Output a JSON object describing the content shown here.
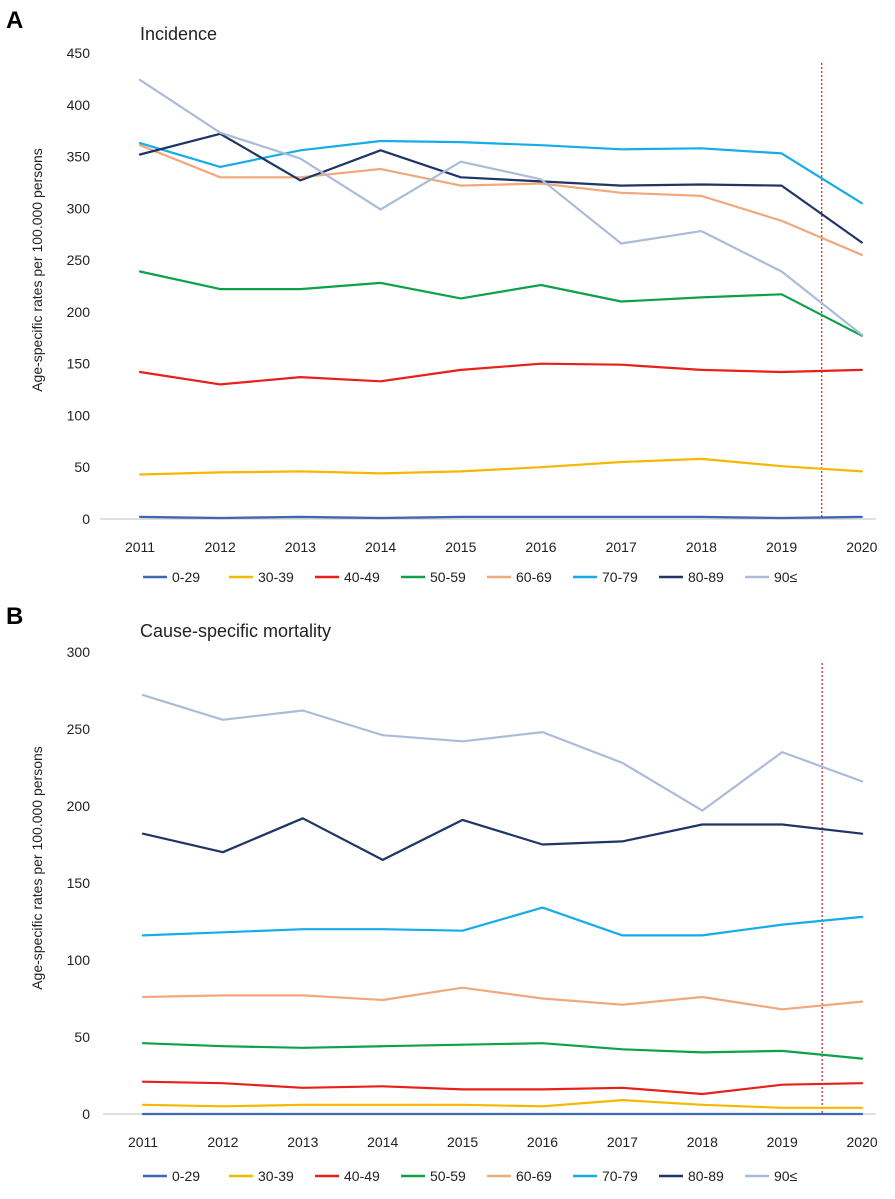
{
  "chart_data": [
    {
      "type": "line",
      "panel": "A",
      "title": "Incidence",
      "xlabel": "",
      "ylabel": "Age-specific rates per 100.000 persons",
      "x": [
        "2011",
        "2012",
        "2013",
        "2014",
        "2015",
        "2016",
        "2017",
        "2018",
        "2019",
        "2020"
      ],
      "ylim": [
        0,
        450
      ],
      "yticks": [
        0,
        50,
        100,
        150,
        200,
        250,
        300,
        350,
        400,
        450
      ],
      "grid": false,
      "legend": "bottom",
      "vline_between": [
        "2019",
        "2020"
      ],
      "series": [
        {
          "name": "0-29",
          "color": "#3f66b1",
          "values": [
            2,
            1,
            2,
            1,
            2,
            2,
            2,
            2,
            1,
            2
          ]
        },
        {
          "name": "30-39",
          "color": "#f5b800",
          "values": [
            43,
            45,
            46,
            44,
            46,
            50,
            55,
            58,
            51,
            46
          ]
        },
        {
          "name": "40-49",
          "color": "#e8201a",
          "values": [
            142,
            130,
            137,
            133,
            144,
            150,
            149,
            144,
            142,
            144
          ]
        },
        {
          "name": "50-59",
          "color": "#0fa04a",
          "values": [
            239,
            222,
            222,
            228,
            213,
            226,
            210,
            214,
            217,
            177
          ]
        },
        {
          "name": "60-69",
          "color": "#f0a87c",
          "values": [
            361,
            330,
            330,
            338,
            322,
            324,
            315,
            312,
            288,
            255
          ]
        },
        {
          "name": "70-79",
          "color": "#16ace8",
          "values": [
            363,
            340,
            356,
            365,
            364,
            361,
            357,
            358,
            353,
            305
          ]
        },
        {
          "name": "80-89",
          "color": "#1f3566",
          "values": [
            352,
            372,
            327,
            356,
            330,
            326,
            322,
            323,
            322,
            267
          ]
        },
        {
          "name": "90≤",
          "color": "#adbbdb",
          "values": [
            424,
            373,
            348,
            299,
            345,
            328,
            266,
            278,
            239,
            178
          ]
        }
      ]
    },
    {
      "type": "line",
      "panel": "B",
      "title": "Cause-specific mortality",
      "xlabel": "",
      "ylabel": "Age-specific rates per 100.000 persons",
      "x": [
        "2011",
        "2012",
        "2013",
        "2014",
        "2015",
        "2016",
        "2017",
        "2018",
        "2019",
        "2020"
      ],
      "ylim": [
        0,
        300
      ],
      "yticks": [
        0,
        50,
        100,
        150,
        200,
        250,
        300
      ],
      "grid": false,
      "legend": "bottom",
      "vline_between": [
        "2019",
        "2020"
      ],
      "series": [
        {
          "name": "0-29",
          "color": "#3f66b1",
          "values": [
            0,
            0,
            0,
            0,
            0,
            0,
            0,
            0,
            0,
            0
          ]
        },
        {
          "name": "30-39",
          "color": "#f5b800",
          "values": [
            6,
            5,
            6,
            6,
            6,
            5,
            9,
            6,
            4,
            4
          ]
        },
        {
          "name": "40-49",
          "color": "#e8201a",
          "values": [
            21,
            20,
            17,
            18,
            16,
            16,
            17,
            13,
            19,
            20
          ]
        },
        {
          "name": "50-59",
          "color": "#0fa04a",
          "values": [
            46,
            44,
            43,
            44,
            45,
            46,
            42,
            40,
            41,
            36
          ]
        },
        {
          "name": "60-69",
          "color": "#f0a87c",
          "values": [
            76,
            77,
            77,
            74,
            82,
            75,
            71,
            76,
            68,
            73
          ]
        },
        {
          "name": "70-79",
          "color": "#16ace8",
          "values": [
            116,
            118,
            120,
            120,
            119,
            134,
            116,
            116,
            123,
            128
          ]
        },
        {
          "name": "80-89",
          "color": "#1f3566",
          "values": [
            182,
            170,
            192,
            165,
            191,
            175,
            177,
            188,
            188,
            182
          ]
        },
        {
          "name": "90≤",
          "color": "#adbbdb",
          "values": [
            272,
            256,
            262,
            246,
            242,
            248,
            228,
            197,
            235,
            216
          ]
        }
      ]
    }
  ]
}
